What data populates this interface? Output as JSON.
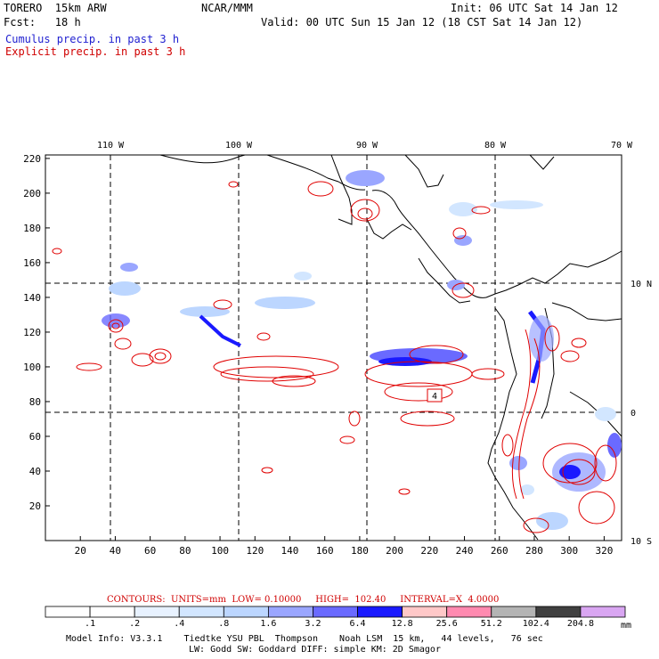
{
  "header": {
    "model": "TORERO  15km ARW",
    "org": "NCAR/MMM",
    "init": "Init: 06 UTC Sat 14 Jan 12",
    "fcst": "Fcst:   18 h",
    "valid": "Valid: 00 UTC Sun 15 Jan 12 (18 CST Sat 14 Jan 12)",
    "cumulus_label": "Cumulus precip. in past 3 h",
    "explicit_label": "Explicit precip. in past 3 h",
    "cumulus_color": "#1f1fd0",
    "explicit_color": "#d00000"
  },
  "map": {
    "top_lon_labels": [
      "110 W",
      "100 W",
      "90 W",
      "80 W",
      "70 W"
    ],
    "right_lat_labels": [
      "10 N",
      "0",
      "10 S"
    ],
    "x_ticks": [
      "20",
      "40",
      "60",
      "80",
      "100",
      "120",
      "140",
      "160",
      "180",
      "200",
      "220",
      "240",
      "260",
      "280",
      "300",
      "320"
    ],
    "y_ticks": [
      "20",
      "40",
      "60",
      "80",
      "100",
      "120",
      "140",
      "160",
      "180",
      "200",
      "220"
    ],
    "annotations": [
      "4"
    ],
    "coastline_color": "#000000",
    "grid_style": "dashed"
  },
  "contours_line": {
    "text": "CONTOURS:  UNITS=mm  LOW= 0.10000     HIGH=  102.40     INTERVAL=X  4.0000"
  },
  "colorbar": {
    "labels": [
      ".1",
      ".2",
      ".4",
      ".8",
      "1.6",
      "3.2",
      "6.4",
      "12.8",
      "25.6",
      "51.2",
      "102.4",
      "204.8"
    ],
    "unit": "mm",
    "colors": [
      "#ffffff",
      "#ffffff",
      "#e8f2ff",
      "#d2e6ff",
      "#bcd6ff",
      "#9aa6ff",
      "#6a6aff",
      "#1a1aff",
      "#ffc8c8",
      "#ff8ab0",
      "#b4b4b4",
      "#404040",
      "#d9a6f2"
    ]
  },
  "footer": {
    "line1": "Model Info: V3.3.1    Tiedtke YSU PBL  Thompson    Noah LSM  15 km,   44 levels,   76 sec",
    "line2": "LW: Godd SW: Goddard DIFF: simple KM: 2D Smagor"
  }
}
